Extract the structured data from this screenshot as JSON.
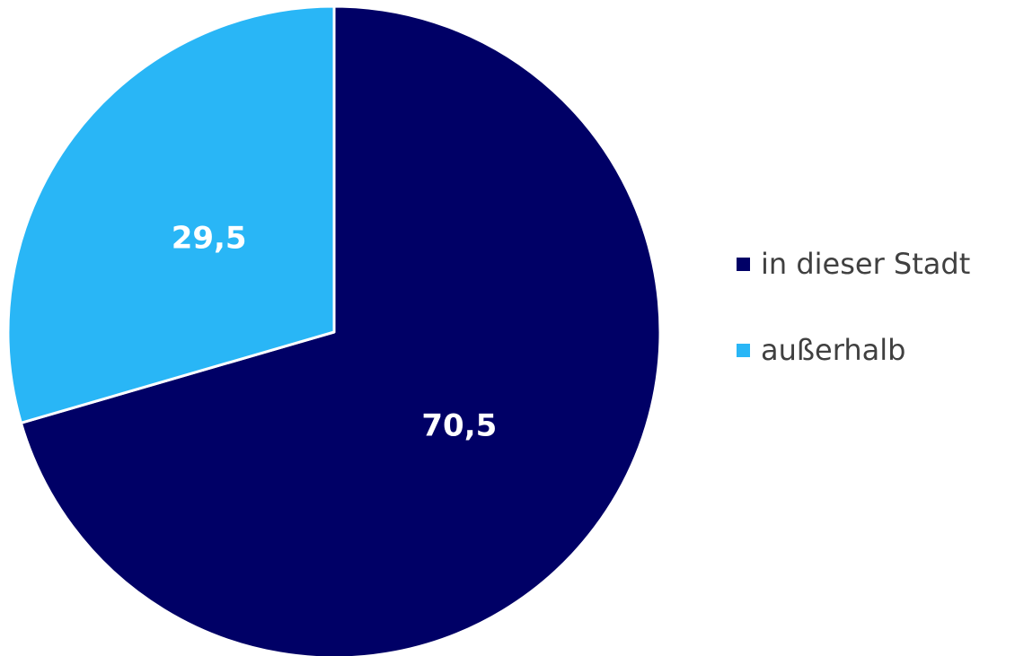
{
  "chart_data": {
    "type": "pie",
    "title": "",
    "start_angle_deg": 0,
    "direction": "clockwise",
    "slices": [
      {
        "label": "in dieser Stadt",
        "value": 70.5,
        "value_label": "70,5",
        "color": "#000066"
      },
      {
        "label": "außerhalb",
        "value": 29.5,
        "value_label": "29,5",
        "color": "#29B6F6"
      }
    ],
    "legend": {
      "position": "right"
    }
  }
}
